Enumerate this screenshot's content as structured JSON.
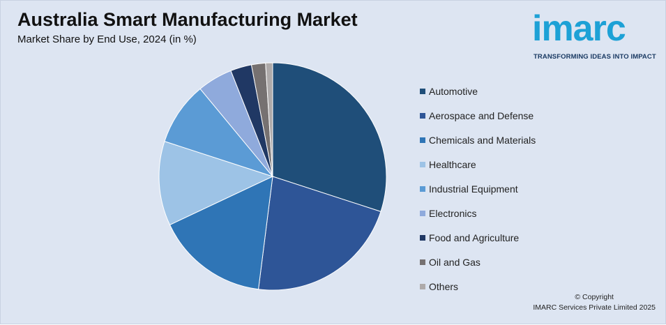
{
  "header": {
    "title": "Australia Smart Manufacturing Market",
    "subtitle": "Market Share by End Use, 2024 (in %)"
  },
  "logo": {
    "wordmark": "imarc",
    "tagline": "TRANSFORMING IDEAS INTO IMPACT",
    "color": "#1da1d6",
    "tagline_color": "#1a3a63"
  },
  "chart_data": {
    "type": "pie",
    "title": "Australia Smart Manufacturing Market",
    "subtitle": "Market Share by End Use, 2024 (in %)",
    "legend_position": "right",
    "start_angle_deg": 0,
    "direction": "clockwise",
    "slices": [
      {
        "label": "Automotive",
        "value": 30,
        "color": "#1f4e79"
      },
      {
        "label": "Aerospace and Defense",
        "value": 22,
        "color": "#2e5597"
      },
      {
        "label": "Chemicals and Materials",
        "value": 16,
        "color": "#2f75b6"
      },
      {
        "label": "Healthcare",
        "value": 12,
        "color": "#9dc3e6"
      },
      {
        "label": "Industrial Equipment",
        "value": 9,
        "color": "#5b9bd5"
      },
      {
        "label": "Electronics",
        "value": 5,
        "color": "#8faadc"
      },
      {
        "label": "Food and Agriculture",
        "value": 3,
        "color": "#203864"
      },
      {
        "label": "Oil and Gas",
        "value": 2,
        "color": "#767171"
      },
      {
        "label": "Others",
        "value": 1,
        "color": "#aeaaaa"
      }
    ]
  },
  "footer": {
    "copyright_line1": "© Copyright",
    "copyright_line2": "IMARC Services Private Limited 2025"
  }
}
